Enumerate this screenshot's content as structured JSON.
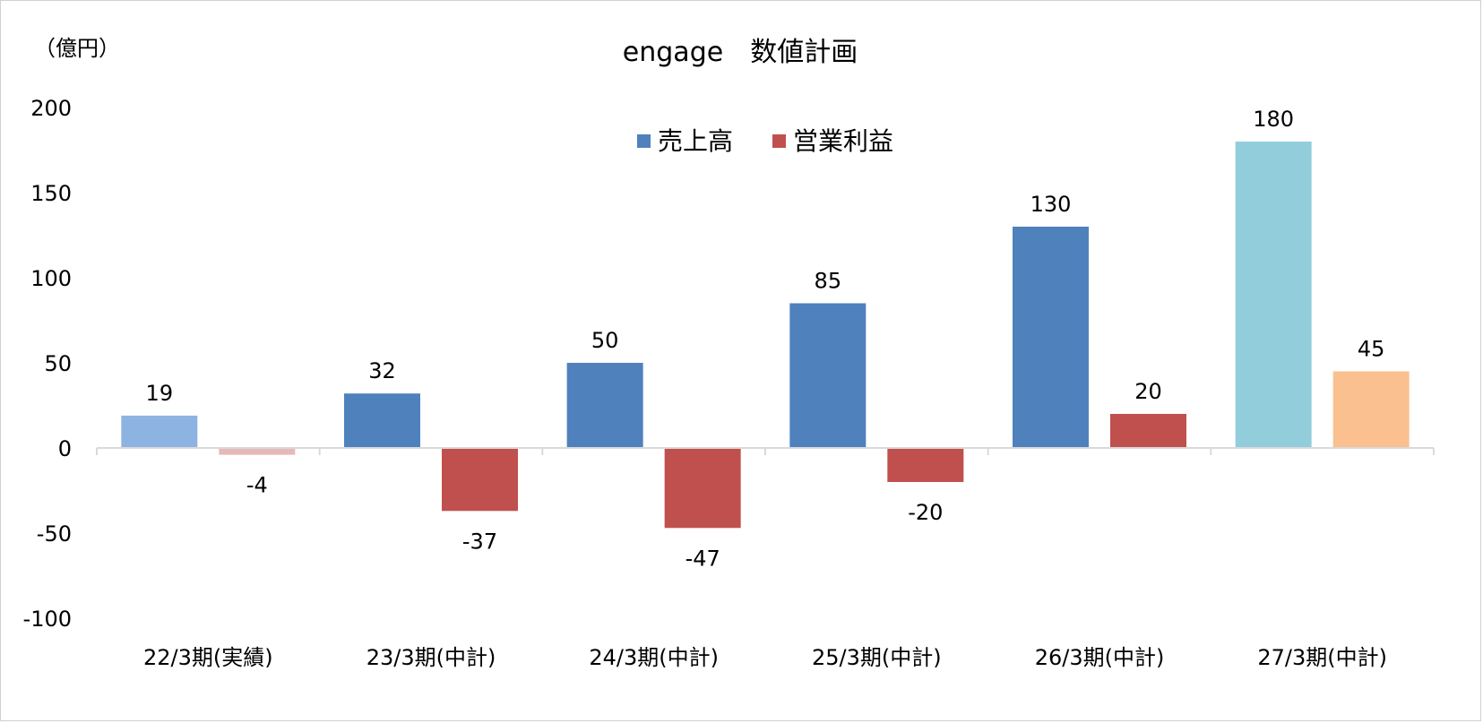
{
  "chart_data": {
    "type": "bar",
    "title": "engage　数値計画",
    "unit_label": "（億円）",
    "categories": [
      "22/3期(実績)",
      "23/3期(中計)",
      "24/3期(中計)",
      "25/3期(中計)",
      "26/3期(中計)",
      "27/3期(中計)"
    ],
    "series": [
      {
        "name": "売上高",
        "values": [
          19,
          32,
          50,
          85,
          130,
          180
        ],
        "value_labels": [
          "19",
          "32",
          "50",
          "85",
          "130",
          "180"
        ],
        "color": "#4f81bd",
        "point_colors": [
          "#8db3e2",
          "#4f81bd",
          "#4f81bd",
          "#4f81bd",
          "#4f81bd",
          "#92cddc"
        ]
      },
      {
        "name": "営業利益",
        "values": [
          -4,
          -37,
          -47,
          -20,
          20,
          45
        ],
        "value_labels": [
          "-4",
          "-37",
          "-47",
          "-20",
          "20",
          "45"
        ],
        "color": "#c0504d",
        "point_colors": [
          "#e6b9b8",
          "#c0504d",
          "#c0504d",
          "#c0504d",
          "#c0504d",
          "#fac090"
        ]
      }
    ],
    "ylim": [
      -100,
      200
    ],
    "yticks": [
      -100,
      -50,
      0,
      50,
      100,
      150,
      200
    ],
    "ytick_labels": [
      "-100",
      "-50",
      "0",
      "50",
      "100",
      "150",
      "200"
    ],
    "grid": false,
    "legend_position": "top-center",
    "axis_color": "#d9d9d9"
  }
}
